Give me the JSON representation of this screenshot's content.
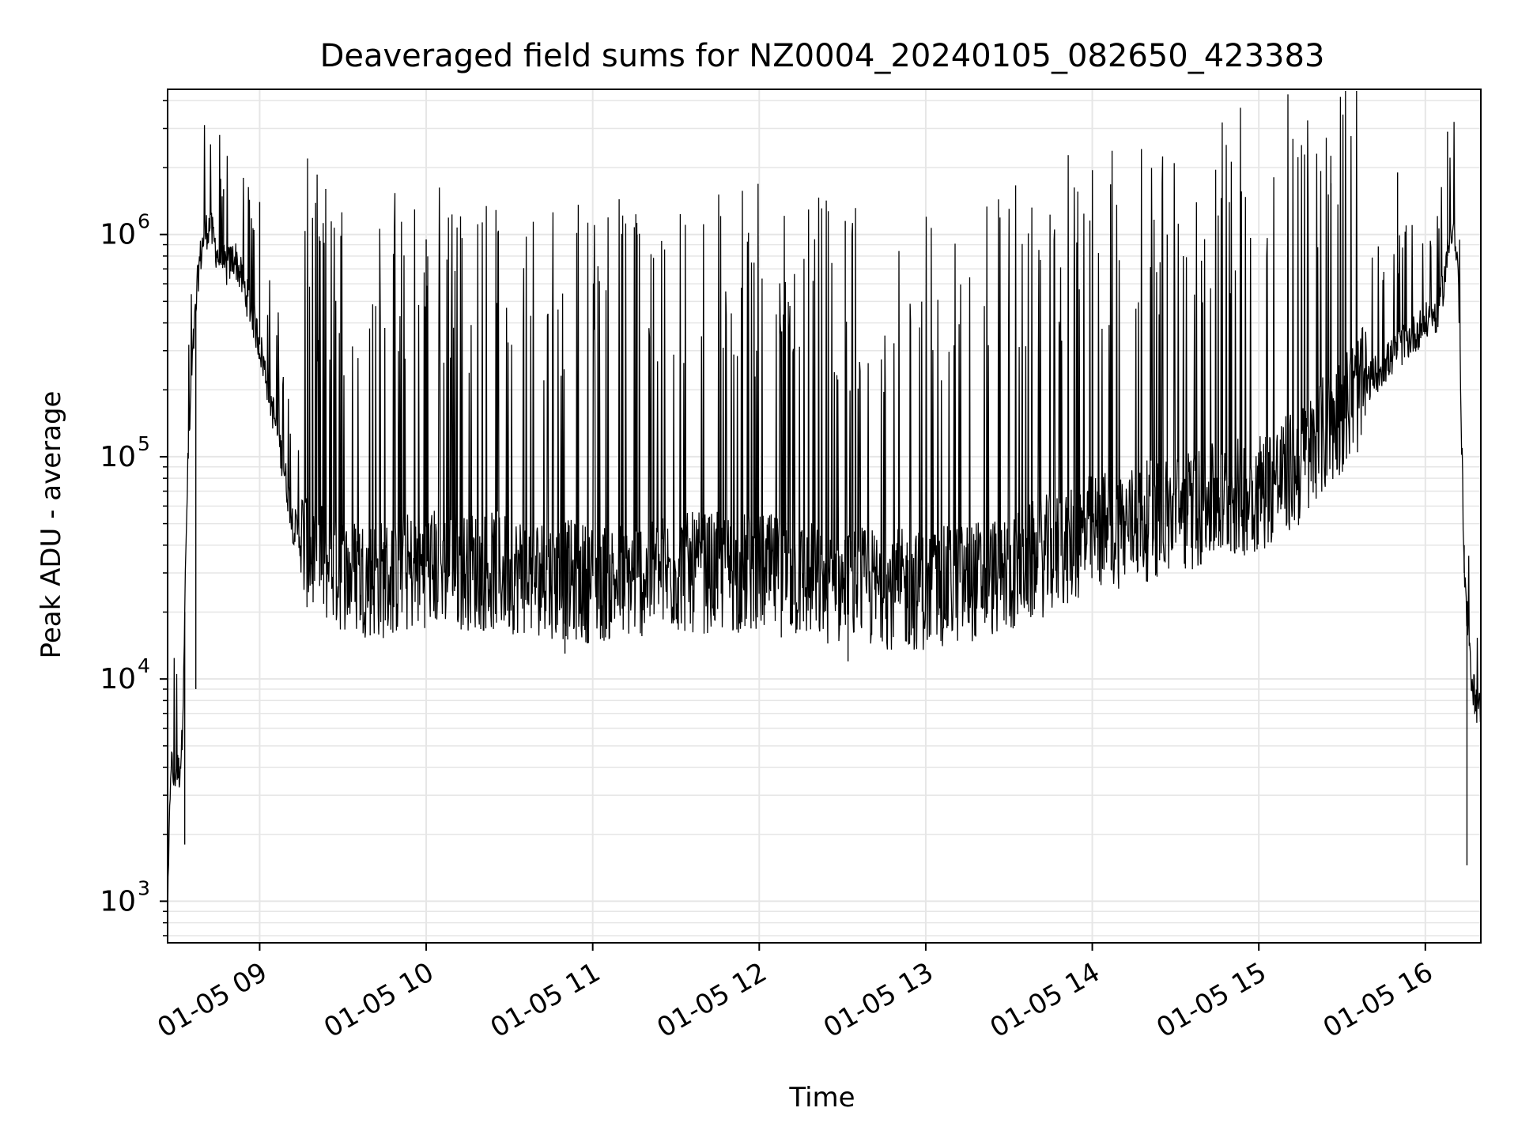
{
  "chart_data": {
    "type": "line",
    "title": "Deaveraged field sums for NZ0004_20240105_082650_423383",
    "xlabel": "Time",
    "ylabel": "Peak ADU - average",
    "x_scale": "time",
    "y_scale": "log",
    "xlim": [
      "2024-01-05 08:26:50",
      "2024-01-05 16:20:00"
    ],
    "ylim": [
      650,
      4500000
    ],
    "x_ticks": [
      {
        "label": "01-05 09",
        "value": "2024-01-05 09:00"
      },
      {
        "label": "01-05 10",
        "value": "2024-01-05 10:00"
      },
      {
        "label": "01-05 11",
        "value": "2024-01-05 11:00"
      },
      {
        "label": "01-05 12",
        "value": "2024-01-05 12:00"
      },
      {
        "label": "01-05 13",
        "value": "2024-01-05 13:00"
      },
      {
        "label": "01-05 14",
        "value": "2024-01-05 14:00"
      },
      {
        "label": "01-05 15",
        "value": "2024-01-05 15:00"
      },
      {
        "label": "01-05 16",
        "value": "2024-01-05 16:00"
      }
    ],
    "y_ticks": [
      {
        "base": "10",
        "exp": "3",
        "value": 1000
      },
      {
        "base": "10",
        "exp": "4",
        "value": 10000
      },
      {
        "base": "10",
        "exp": "5",
        "value": 100000
      },
      {
        "base": "10",
        "exp": "6",
        "value": 1000000
      }
    ],
    "grid": true,
    "line_color": "#000000",
    "grid_color": "#e6e6e6",
    "series": [
      {
        "x": [
          "2024-01-05 08:26:50",
          "2024-01-05 08:28:00",
          "2024-01-05 08:29:00",
          "2024-01-05 08:30:00",
          "2024-01-05 08:31:00",
          "2024-01-05 08:32:00",
          "2024-01-05 08:34:00",
          "2024-01-05 08:36:00",
          "2024-01-05 08:38:00",
          "2024-01-05 08:40:00",
          "2024-01-05 08:42:00",
          "2024-01-05 08:45:00",
          "2024-01-05 08:48:00",
          "2024-01-05 08:51:00",
          "2024-01-05 08:54:00",
          "2024-01-05 08:57:00",
          "2024-01-05 09:00:00",
          "2024-01-05 09:04:00",
          "2024-01-05 09:08:00",
          "2024-01-05 09:12:00",
          "2024-01-05 09:16:00",
          "2024-01-05 09:20:00",
          "2024-01-05 09:30:00",
          "2024-01-05 09:45:00",
          "2024-01-05 10:00:00",
          "2024-01-05 10:30:00",
          "2024-01-05 11:00:00",
          "2024-01-05 11:30:00",
          "2024-01-05 12:00:00",
          "2024-01-05 12:30:00",
          "2024-01-05 13:00:00",
          "2024-01-05 13:30:00",
          "2024-01-05 14:00:00",
          "2024-01-05 14:30:00",
          "2024-01-05 15:00:00",
          "2024-01-05 15:15:00",
          "2024-01-05 15:30:00",
          "2024-01-05 15:40:00",
          "2024-01-05 15:50:00",
          "2024-01-05 16:00:00",
          "2024-01-05 16:05:00",
          "2024-01-05 16:08:00",
          "2024-01-05 16:10:00",
          "2024-01-05 16:12:00",
          "2024-01-05 16:14:00",
          "2024-01-05 16:16:00",
          "2024-01-05 16:18:00",
          "2024-01-05 16:20:00"
        ],
        "y": [
          800,
          4500,
          3500,
          4000,
          3800,
          5000,
          80000,
          300000,
          700000,
          1000000,
          1100000,
          800000,
          700000,
          800000,
          600000,
          450000,
          320000,
          180000,
          100000,
          50000,
          40000,
          35000,
          30000,
          28000,
          32000,
          30000,
          27000,
          30000,
          30000,
          26000,
          25000,
          30000,
          45000,
          55000,
          70000,
          90000,
          160000,
          220000,
          300000,
          400000,
          450000,
          800000,
          1200000,
          600000,
          30000,
          12000,
          8000,
          7000
        ],
        "spikes": [
          {
            "x": "2024-01-05 08:37:00",
            "y": 9000
          },
          {
            "x": "2024-01-05 08:47:00",
            "y": 1600000
          },
          {
            "x": "2024-01-05 09:00:00",
            "y": 1400000
          },
          {
            "x": "2024-01-05 10:00:00",
            "y": 950000
          },
          {
            "x": "2024-01-05 11:16:00",
            "y": 1000000
          },
          {
            "x": "2024-01-05 12:31:00",
            "y": 1150000
          },
          {
            "x": "2024-01-05 14:27:00",
            "y": 1000000
          },
          {
            "x": "2024-01-05 15:26:00",
            "y": 1700000
          },
          {
            "x": "2024-01-05 15:50:00",
            "y": 1900000
          },
          {
            "x": "2024-01-05 16:08:00",
            "y": 2900000
          },
          {
            "x": "2024-01-05 16:14:00",
            "y": 40000
          }
        ],
        "dips": [
          {
            "x": "2024-01-05 08:33:00",
            "y": 1800
          },
          {
            "x": "2024-01-05 10:50:00",
            "y": 13000
          },
          {
            "x": "2024-01-05 12:32:00",
            "y": 12000
          },
          {
            "x": "2024-01-05 16:15:00",
            "y": 1450
          }
        ]
      }
    ]
  }
}
